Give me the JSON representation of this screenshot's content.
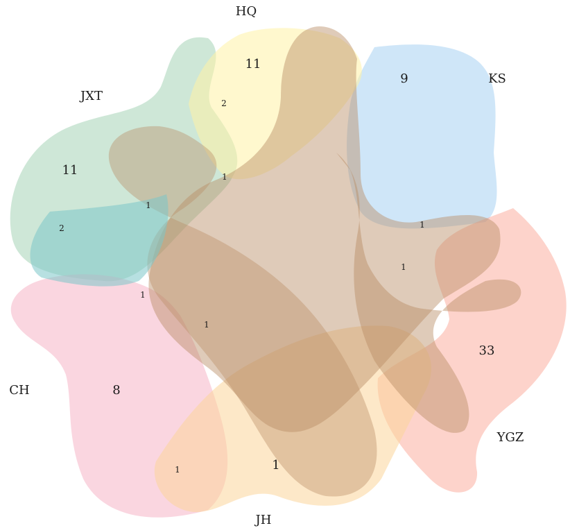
{
  "sets": [
    {
      "id": "hq",
      "label": "HQ",
      "color": "#fff3a6"
    },
    {
      "id": "ks",
      "label": "KS",
      "color": "#a7d2f3"
    },
    {
      "id": "jxt",
      "label": "JXT",
      "color": "#a5d3b6"
    },
    {
      "id": "ch",
      "label": "CH",
      "color": "#f5b5c6"
    },
    {
      "id": "ygz",
      "label": "YGZ",
      "color": "#fca898"
    },
    {
      "id": "jh",
      "label": "JH",
      "color": "#fcd69a"
    },
    {
      "id": "br",
      "label": "",
      "color": "#b98c63"
    }
  ],
  "regions": [
    {
      "id": "hq-only",
      "value": "11",
      "size": "big"
    },
    {
      "id": "ks-only",
      "value": "9",
      "size": "big"
    },
    {
      "id": "jxt-only",
      "value": "11",
      "size": "big"
    },
    {
      "id": "ch-only",
      "value": "8",
      "size": "big"
    },
    {
      "id": "ygz-only",
      "value": "33",
      "size": "big"
    },
    {
      "id": "jh-only",
      "value": "1",
      "size": "big"
    },
    {
      "id": "r-2a",
      "value": "2",
      "size": "small"
    },
    {
      "id": "r-2b",
      "value": "2",
      "size": "small"
    },
    {
      "id": "r-1a",
      "value": "1",
      "size": "small"
    },
    {
      "id": "r-1b",
      "value": "1",
      "size": "small"
    },
    {
      "id": "r-1c",
      "value": "1",
      "size": "small"
    },
    {
      "id": "r-1d",
      "value": "1",
      "size": "small"
    },
    {
      "id": "r-1e",
      "value": "1",
      "size": "small"
    },
    {
      "id": "r-1f",
      "value": "1",
      "size": "small"
    },
    {
      "id": "r-1g",
      "value": "1",
      "size": "small"
    }
  ]
}
